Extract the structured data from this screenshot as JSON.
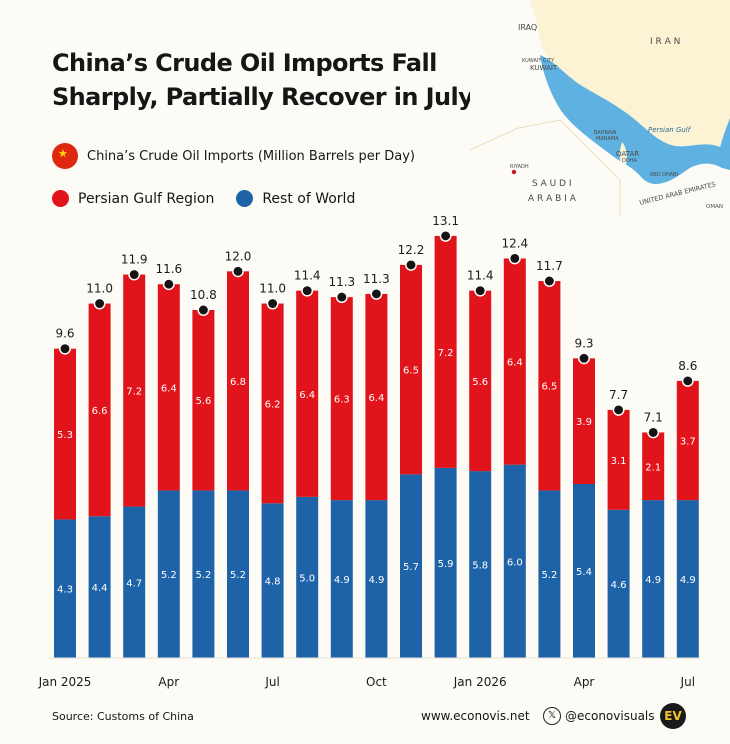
{
  "header": {
    "title": "China’s Crude Oil Imports Fall Sharply, Partially Recover in July"
  },
  "legend": {
    "subtitle": "China’s Crude Oil Imports (Million Barrels per Day)",
    "persian_gulf": "Persian Gulf Region",
    "rest_of_world": "Rest of World"
  },
  "map_labels": {
    "iraq": "IRAQ",
    "iran": "I R A N",
    "kuwait": "KUWAIT",
    "kuwait_city": "KUWAIT CITY",
    "bahrain": "BAHRAIN",
    "manama": "MANAMA",
    "qatar": "QATAR",
    "doha": "DOHA",
    "persian_gulf": "Persian Gulf",
    "abu_dhabi": "ABU DHABI",
    "uae": "UNITED ARAB EMIRATES",
    "riyadh": "RIYADH",
    "saudi_arabia_1": "S A U D I",
    "saudi_arabia_2": "A R A B I A",
    "oman": "OMAN"
  },
  "footer": {
    "source": "Source: Customs of China",
    "website": "www.econovis.net",
    "social": "@econovisuals",
    "logo": "EV"
  },
  "colors": {
    "persian_gulf": "#e1141c",
    "rest_of_world": "#1e63a8",
    "sea": "#5fb1e1",
    "land": "#fbf3d4"
  },
  "chart_data": {
    "type": "bar",
    "stacked": true,
    "categories": [
      "Jan 2025",
      "Feb 2025",
      "Mar 2025",
      "Apr 2025",
      "May 2025",
      "Jun 2025",
      "Jul 2025",
      "Aug 2025",
      "Sep 2025",
      "Oct 2025",
      "Nov 2025",
      "Dec 2025",
      "Jan 2026",
      "Feb 2026",
      "Mar 2026",
      "Apr 2026",
      "May 2026",
      "Jun 2026",
      "Jul 2026"
    ],
    "x_tick_labels": [
      "Jan 2025",
      "",
      "",
      "Apr",
      "",
      "",
      "Jul",
      "",
      "",
      "Oct",
      "",
      "",
      "Jan 2026",
      "",
      "",
      "Apr",
      "",
      "",
      "Jul"
    ],
    "series": [
      {
        "name": "Rest of World",
        "color": "#1e63a8",
        "values": [
          4.3,
          4.4,
          4.7,
          5.2,
          5.2,
          5.2,
          4.8,
          5.0,
          4.9,
          4.9,
          5.7,
          5.9,
          5.8,
          6.0,
          5.2,
          5.4,
          4.6,
          4.9,
          4.9
        ]
      },
      {
        "name": "Persian Gulf Region",
        "color": "#e1141c",
        "values": [
          5.3,
          6.6,
          7.2,
          6.4,
          5.6,
          6.8,
          6.2,
          6.4,
          6.3,
          6.4,
          6.5,
          7.2,
          5.6,
          6.4,
          6.5,
          3.9,
          3.1,
          2.1,
          3.7
        ]
      }
    ],
    "totals": [
      9.6,
      11.0,
      11.9,
      11.6,
      10.8,
      12.0,
      11.0,
      11.4,
      11.3,
      11.3,
      12.2,
      13.1,
      11.4,
      12.4,
      11.7,
      9.3,
      7.7,
      7.1,
      8.6
    ],
    "ylim": [
      0,
      13.5
    ],
    "grid": false,
    "legend_position": "top-left"
  }
}
